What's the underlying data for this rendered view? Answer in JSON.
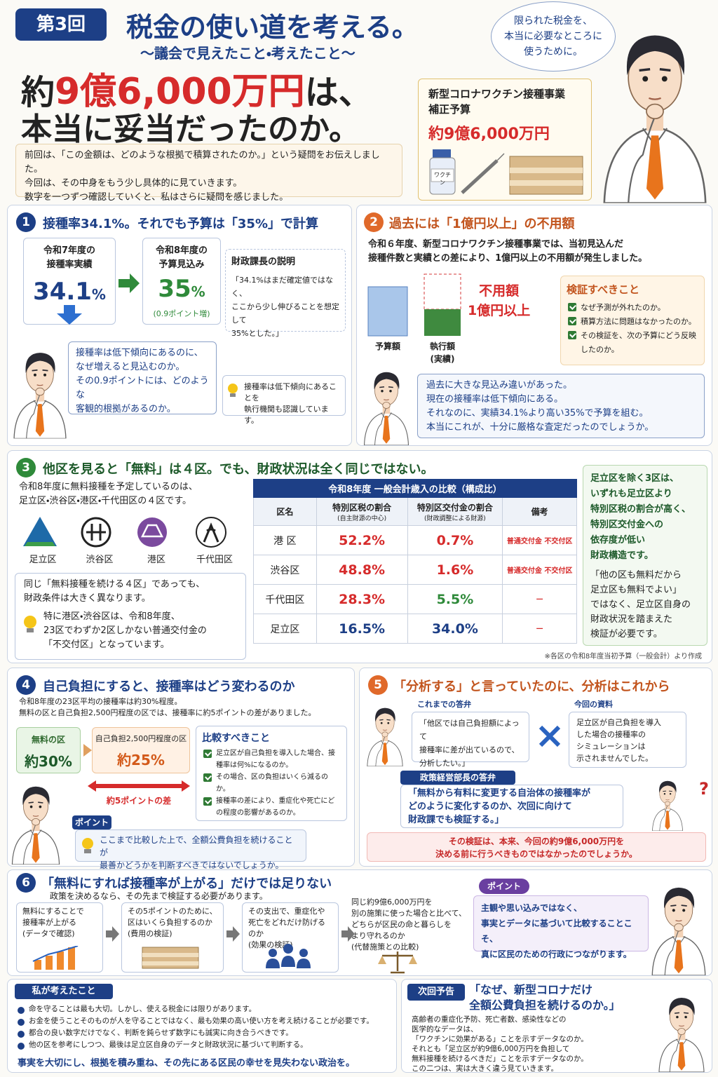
{
  "header": {
    "badge": "第3回",
    "title": "税金の使い道を考える。",
    "subtitle": "〜議会で見えたこと・考えたこと〜",
    "headline_pre": "約",
    "headline_amount": "9億6,000万円",
    "headline_post": "は、",
    "headline_2": "本当に妥当だったのか。",
    "bubble": [
      "限られた税金を、",
      "本当に必要なところに",
      "使うために。"
    ],
    "intro": [
      "前回は、「この金額は、どのような根拠で積算されたのか。」という疑問をお伝えしました。",
      "今回は、その中身をもう少し具体的に見ていきます。",
      "数字を一つずつ確認していくと、私はさらに疑問を感じました。"
    ],
    "card_lines": [
      "新型コロナワクチン接種事業",
      "補正予算"
    ],
    "card_amount": "約9億6,000万円",
    "vial_label": "ワクチン"
  },
  "section1": {
    "number": "1",
    "title": "接種率34.1%。それでも予算は「35%」で計算",
    "actual_label": [
      "令和7年度の",
      "接種率実績"
    ],
    "actual_value": "34.1",
    "actual_unit": "%",
    "plan_label": [
      "令和8年度の",
      "予算見込み"
    ],
    "plan_value": "35",
    "plan_unit": "%",
    "plan_note": "(0.9ポイント増)",
    "explain_title": "財政課長の説明",
    "explain_text": [
      "「34.1%はまだ確定値ではなく、",
      "ここから少し伸びることを想定して",
      "35%とした。」"
    ],
    "question": [
      "接種率は低下傾向にあるのに、",
      "なぜ増えると見込むのか。",
      "その0.9ポイントには、どのような",
      "客観的根拠があるのか。"
    ],
    "tip": [
      "接種率は低下傾向にあることを",
      "執行機関も認識しています。"
    ]
  },
  "section2": {
    "number": "2",
    "title": "過去には「1億円以上」の不用額",
    "text": [
      "令和６年度、新型コロナワクチン接種事業では、当初見込んだ",
      "接種件数と実績との差により、1億円以上の不用額が発生しました。"
    ],
    "budget_label": "予算額",
    "actual_label": [
      "執行額",
      "(実績)"
    ],
    "unused": [
      "不用額",
      "1億円以上"
    ],
    "verify_title": "検証すべきこと",
    "verify_items": [
      "なぜ予測が外れたのか。",
      "積算方法に問題はなかったのか。",
      "その検証を、次の予算にどう反映したのか。"
    ],
    "bubble": [
      "過去に大きな見込み違いがあった。",
      "現在の接種率は低下傾向にある。",
      "それなのに、実績34.1%より高い35%で予算を組む。",
      "本当にこれが、十分に厳格な査定だったのでしょうか。"
    ]
  },
  "section3": {
    "number": "3",
    "title": "他区を見ると「無料」は４区。でも、財政状況は全く同じではない。",
    "text": [
      "令和8年度に無料接種を予定しているのは、",
      "足立区・渋谷区・港区・千代田区の４区です。"
    ],
    "wards": [
      "足立区",
      "渋谷区",
      "港区",
      "千代田区"
    ],
    "note": [
      "同じ「無料接種を続ける４区」であっても、",
      "財政条件は大きく異なります。"
    ],
    "tip": [
      "特に港区・渋谷区は、令和8年度、",
      "23区でわずか2区しかない普通交付金の",
      "「不交付区」となっています。"
    ],
    "table": {
      "title": "令和8年度 一般会計歳入の比較（構成比）",
      "headers": [
        "区名",
        "特別区税の割合",
        "特別区交付金の割合",
        "備考"
      ],
      "subheaders": [
        "(自主財源の中心)",
        "(財政調整による財源)"
      ],
      "rows": [
        [
          "港 区",
          "52.2%",
          "0.7%",
          "普通交付金 不交付区"
        ],
        [
          "渋谷区",
          "48.8%",
          "1.6%",
          "普通交付金 不交付区"
        ],
        [
          "千代田区",
          "28.3%",
          "5.5%",
          "—"
        ],
        [
          "足立区",
          "16.5%",
          "34.0%",
          "—"
        ]
      ]
    },
    "side": [
      "足立区を除く3区は、",
      "いずれも足立区より",
      "特別区税の割合が高く、",
      "特別区交付金への",
      "依存度が低い",
      "財政構造です。"
    ],
    "side2": [
      "「他の区も無料だから",
      "足立区も無料でよい」",
      "ではなく、足立区自身の",
      "財政状況を踏まえた",
      "検証が必要です。"
    ],
    "footnote": "※各区の令和8年度当初予算（一般会計）より作成"
  },
  "section4": {
    "number": "4",
    "title": "自己負担にすると、接種率はどう変わるのか",
    "text": [
      "令和8年度の23区平均の接種率は約30%程度。",
      "無料の区と自己負担2,500円程度の区では、接種率に約5ポイントの差がありました。"
    ],
    "free_label": "無料の区",
    "free_value": "約30%",
    "paid_label": "自己負担2,500円程度の区",
    "paid_value": "約25%",
    "diff": "約5ポイントの差",
    "compare_title": "比較すべきこと",
    "compare_items": [
      "足立区が自己負担を導入した場合、接種率は何%になるのか。",
      "その場合、区の負担はいくら減るのか。",
      "接種率の差により、重症化や死亡にどの程度の影響があるのか。"
    ],
    "point_label": "ポイント",
    "point": [
      "ここまで比較した上で、全額公費負担を続けることが",
      "最善かどうかを判断すべきではないでしょうか。"
    ]
  },
  "section5": {
    "number": "5",
    "title": "「分析する」と言っていたのに、分析はこれから",
    "past_label": "これまでの答弁",
    "past": [
      "「他区では自己負担額によって",
      "接種率に差が出ているので、",
      "分析したい。」"
    ],
    "current_label": "今回の資料",
    "current": [
      "足立区が自己負担を導入",
      "した場合の接種率の",
      "シミュレーションは",
      "示されませんでした。"
    ],
    "director_label": "政策経営部長の答弁",
    "director": [
      "「無料から有料に変更する自治体の接種率が",
      "どのように変化するのか、次回に向けて",
      "財政課でも検証する。」"
    ],
    "conclusion": [
      "その検証は、本来、今回の約9億6,000万円を",
      "決める前に行うべきものではなかったのでしょうか。"
    ]
  },
  "section6": {
    "number": "6",
    "title": "「無料にすれば接種率が上がる」だけでは足りない",
    "sub": "政策を決めるなら、その先まで検証する必要があります。",
    "steps": [
      [
        "無料にすることで",
        "接種率が上がる",
        "(データで確認)"
      ],
      [
        "その5ポイントのために、",
        "区はいくら負担するのか",
        "(費用の検証)"
      ],
      [
        "その支出で、重症化や",
        "死亡をどれだけ防げるのか",
        "(効果の検証)"
      ],
      [
        "同じ約9億6,000万円を",
        "別の施策に使った場合と比べて、",
        "どちらが区民の命と暮らしを",
        "より守れるのか",
        "(代替施策との比較)"
      ]
    ],
    "point_label": "ポイント",
    "point": [
      "主観や思い込みではなく、",
      "事実とデータに基づいて比較することこそ、",
      "真に区民のための行政につながります。"
    ]
  },
  "thoughts": {
    "title": "私が考えたこと",
    "items": [
      "命を守ることは最も大切。しかし、使える税金には限りがあります。",
      "お金を使うことそのものが人を守ることではなく、最も効果の高い使い方を考え続けることが必要です。",
      "都合の良い数字だけでなく、判断を鈍らせず数字にも誠実に向き合うべきです。",
      "他の区を参考にしつつ、最後は足立区自身のデータと財政状況に基づいて判断する。"
    ],
    "closing": "事実を大切にし、根拠を積み重ね、その先にある区民の幸せを見失わない政治を。"
  },
  "next": {
    "label": "次回予告",
    "title": [
      "「なぜ、新型コロナだけ",
      "全額公費負担を続けるのか。」"
    ],
    "text": [
      "高齢者の重症化予防、死亡者数、感染性などの",
      "医学的なデータは、",
      "「ワクチンに効果がある」ことを示すデータなのか。",
      "それとも「足立区が約9億6,000万円を負担して",
      "無料接種を続けるべきだ」ことを示すデータなのか。",
      "この二つは、実は大きく違う見ていきます。"
    ]
  }
}
